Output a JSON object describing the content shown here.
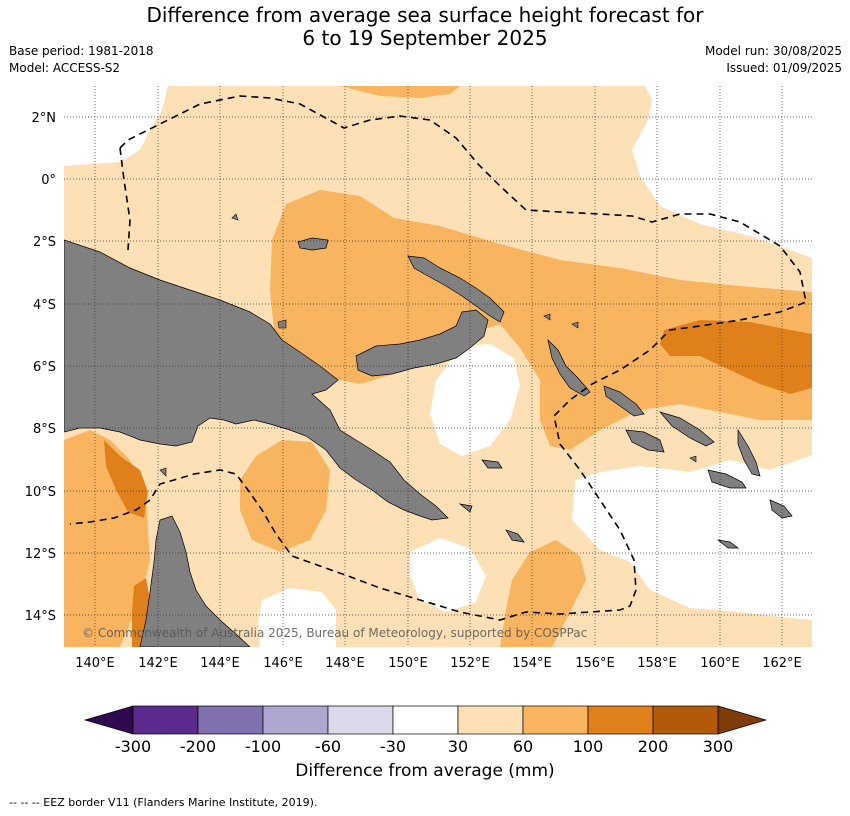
{
  "title_line1": "Difference from average sea surface height forecast for",
  "title_line2": "6 to 19 September 2025",
  "base_period": "Base period: 1981-2018",
  "model": "Model: ACCESS-S2",
  "model_run": "Model run: 30/08/2025",
  "issued": "Issued: 01/09/2025",
  "copyright": "© Commonwealth of Australia 2025, Bureau of Meteorology, supported by COSPPac",
  "lat_labels": [
    "2°N",
    "0°",
    "2°S",
    "4°S",
    "6°S",
    "8°S",
    "10°S",
    "12°S",
    "14°S"
  ],
  "lon_labels": [
    "140°E",
    "142°E",
    "144°E",
    "146°E",
    "148°E",
    "150°E",
    "152°E",
    "154°E",
    "156°E",
    "158°E",
    "160°E",
    "162°E"
  ],
  "colorbar": {
    "title": "Difference from average (mm)",
    "ticks": [
      "-300",
      "-200",
      "-100",
      "-60",
      "-30",
      "30",
      "60",
      "100",
      "200",
      "300"
    ],
    "colors": [
      "#5b2a8c",
      "#8070ae",
      "#b0a7d1",
      "#dadaeb",
      "#ffffff",
      "#fde0b5",
      "#f9b45f",
      "#e0801a",
      "#b15a0a"
    ],
    "under_color": "#2f0a50",
    "over_color": "#7f3b08"
  },
  "colors": {
    "land": "#808080",
    "c30": "#fde0b5",
    "c60": "#f9b45f",
    "c100": "#e0801a"
  },
  "footer": "--  --  -- EEZ border V11 (Flanders Marine Institute, 2019)."
}
